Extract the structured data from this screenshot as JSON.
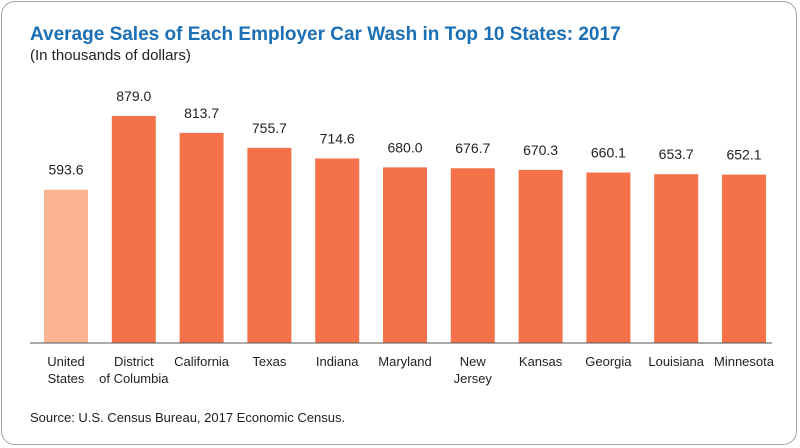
{
  "chart_data": {
    "type": "bar",
    "title": "Average Sales of Each Employer Car Wash in Top 10 States: 2017",
    "subtitle": "(In thousands of dollars)",
    "categories": [
      [
        "United",
        "States"
      ],
      [
        "District",
        "of Columbia"
      ],
      [
        "California"
      ],
      [
        "Texas"
      ],
      [
        "Indiana"
      ],
      [
        "Maryland"
      ],
      [
        "New",
        "Jersey"
      ],
      [
        "Kansas"
      ],
      [
        "Georgia"
      ],
      [
        "Louisiana"
      ],
      [
        "Minnesota"
      ]
    ],
    "values": [
      593.6,
      879.0,
      813.7,
      755.7,
      714.6,
      680.0,
      676.7,
      670.3,
      660.1,
      653.7,
      652.1
    ],
    "value_labels": [
      "593.6",
      "879.0",
      "813.7",
      "755.7",
      "714.6",
      "680.0",
      "676.7",
      "670.3",
      "660.1",
      "653.7",
      "652.1"
    ],
    "colors": [
      "#fbb394",
      "#f4714a",
      "#f4714a",
      "#f4714a",
      "#f4714a",
      "#f4714a",
      "#f4714a",
      "#f4714a",
      "#f4714a",
      "#f4714a",
      "#f4714a"
    ],
    "ylim": [
      0,
      879.0
    ],
    "grid": false,
    "source": "Source: U.S. Census Bureau, 2017 Economic Census."
  }
}
